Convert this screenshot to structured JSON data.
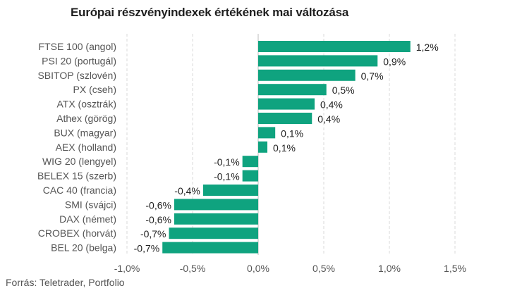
{
  "title": "Európai részvényindexek értékének mai változása",
  "source": "Forrás: Teletrader, Portfolio",
  "colors": {
    "bar": "#0fa37f",
    "grid": "#d9d9d9",
    "zero_axis": "#bdbdbd"
  },
  "chart_data": {
    "type": "bar",
    "orientation": "horizontal",
    "title": "Európai részvényindexek értékének mai változása",
    "categories": [
      "FTSE 100 (angol)",
      "PSI 20 (portugál)",
      "SBITOP (szlovén)",
      "PX (cseh)",
      "ATX (osztrák)",
      "Athex (görög)",
      "BUX (magyar)",
      "AEX (holland)",
      "WIG 20 (lengyel)",
      "BELEX 15 (szerb)",
      "CAC 40 (francia)",
      "SMI (svájci)",
      "DAX (német)",
      "CROBEX (horvát)",
      "BEL 20 (belga)"
    ],
    "values": [
      1.16,
      0.91,
      0.74,
      0.52,
      0.43,
      0.41,
      0.13,
      0.07,
      -0.12,
      -0.12,
      -0.42,
      -0.64,
      -0.64,
      -0.68,
      -0.73
    ],
    "data_labels": [
      "1,2%",
      "0,9%",
      "0,7%",
      "0,5%",
      "0,4%",
      "0,4%",
      "0,1%",
      "0,1%",
      "-0,1%",
      "-0,1%",
      "-0,4%",
      "-0,6%",
      "-0,6%",
      "-0,7%",
      "-0,7%"
    ],
    "xlim": [
      -1.0,
      1.5
    ],
    "x_ticks": [
      -1.0,
      -0.5,
      0.0,
      0.5,
      1.0,
      1.5
    ],
    "x_tick_labels": [
      "-1,0%",
      "-0,5%",
      "0,0%",
      "0,5%",
      "1,0%",
      "1,5%"
    ],
    "xlabel": "",
    "ylabel": "",
    "grid": true,
    "legend": false
  }
}
